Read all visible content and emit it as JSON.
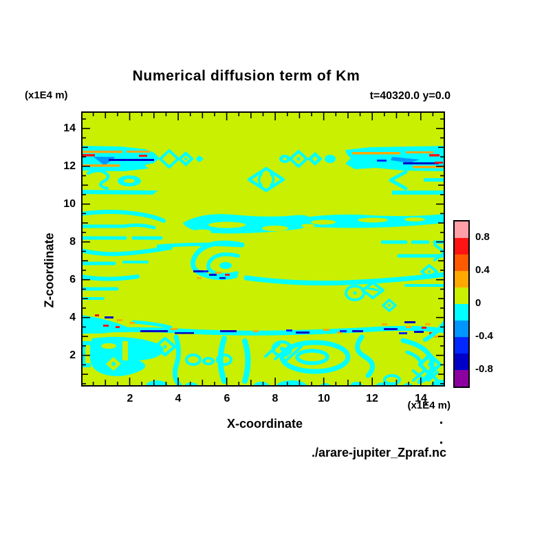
{
  "title": "Numerical diffusion term of Km",
  "annotation": "t=40320.0 y=0.0",
  "footer": "./arare-jupiter_Zpraf.nc",
  "axes": {
    "x": {
      "label": "X-coordinate",
      "unit": "(x1E4 m)",
      "tick_labels": [
        "2",
        "4",
        "6",
        "8",
        "10",
        "12",
        "14"
      ],
      "range": [
        0,
        15
      ]
    },
    "z": {
      "label": "Z-coordinate",
      "unit": "(x1E4 m)",
      "tick_labels": [
        "2",
        "4",
        "6",
        "8",
        "10",
        "12",
        "14"
      ],
      "range": [
        0.35,
        14.9
      ]
    }
  },
  "colorbar": {
    "labels": [
      "0.8",
      "0.4",
      "0",
      "-0.4",
      "-0.8"
    ],
    "colors": [
      "#ffa0a8",
      "#ff1414",
      "#ff5a00",
      "#ffa800",
      "#c8f000",
      "#00ffff",
      "#0096ff",
      "#0028ff",
      "#0000c8",
      "#8c00a0"
    ],
    "label_interval": 0.4
  },
  "palette": {
    "background": "#c8f000",
    "cyan": "#00ffff",
    "orange": "#ffa800",
    "red": "#ff1414",
    "vermilion": "#ff5a00",
    "light_blue": "#0096ff",
    "blue": "#0028ff",
    "navy": "#0000c8",
    "purple": "#8c00a0",
    "pink": "#ffa0a8",
    "frame": "#000000",
    "page": "#ffffff"
  },
  "chart_data": {
    "type": "heatmap",
    "title": "Numerical diffusion term of Km",
    "subtitle": "t=40320.0 y=0.0",
    "source_label": "./arare-jupiter_Zpraf.nc",
    "xlabel": "X-coordinate",
    "ylabel": "Z-coordinate",
    "x_unit": "x1E4 m",
    "z_unit": "x1E4 m",
    "xlim": [
      0,
      15
    ],
    "zlim": [
      0.35,
      14.9
    ],
    "xticks": [
      2,
      4,
      6,
      8,
      10,
      12,
      14
    ],
    "zticks": [
      2,
      4,
      6,
      8,
      10,
      12,
      14
    ],
    "grid": false,
    "legend_position": "right-colorbar",
    "contour_interval": 0.2,
    "labeled_levels": [
      0.8,
      0.4,
      0,
      -0.4,
      -0.8
    ],
    "level_bins_top_to_bottom": [
      {
        "range": "> 0.8",
        "color": "#ffa0a8"
      },
      {
        "range": "0.6 to 0.8",
        "color": "#ff1414"
      },
      {
        "range": "0.4 to 0.6",
        "color": "#ff5a00"
      },
      {
        "range": "0.2 to 0.4",
        "color": "#ffa800"
      },
      {
        "range": "0 to 0.2",
        "color": "#c8f000"
      },
      {
        "range": "-0.2 to 0",
        "color": "#00ffff"
      },
      {
        "range": "-0.4 to -0.2",
        "color": "#0096ff"
      },
      {
        "range": "-0.6 to -0.4",
        "color": "#0028ff"
      },
      {
        "range": "-0.8 to -0.6",
        "color": "#0000c8"
      },
      {
        "range": "< -0.8",
        "color": "#8c00a0"
      }
    ],
    "features": [
      {
        "name": "background field",
        "value_bin": "0 to 0.2",
        "extent": "most of the domain"
      },
      {
        "name": "upper streak band",
        "x": "0-3.5 and 9-15",
        "z": "11.8-12.9",
        "value_bin": "-0.2 to 0, with specks up to +/-1.0 along z=12.3"
      },
      {
        "name": "isolated diamond cell",
        "x": "7.3-8.0",
        "z": "11.1-11.9",
        "value_bin": "-0.2 to 0"
      },
      {
        "name": "mid turbulent band",
        "x": "0-15",
        "z": "5.2-9.6",
        "value_bin": "interleaved 0 to 0.2 and -0.2 to 0, sparse specks up to +/-0.6 near z=6"
      },
      {
        "name": "thin speckled line",
        "x": "0-15",
        "z": "3.0",
        "value_bin": "-0.2 to 0 line with specks up to +/-1.0"
      },
      {
        "name": "lower turbulent region",
        "x": "0-15",
        "z": "0.35-3.0",
        "value_bin": "interleaved 0 to 0.2 and -0.2 to 0 swirls and rings"
      }
    ]
  }
}
